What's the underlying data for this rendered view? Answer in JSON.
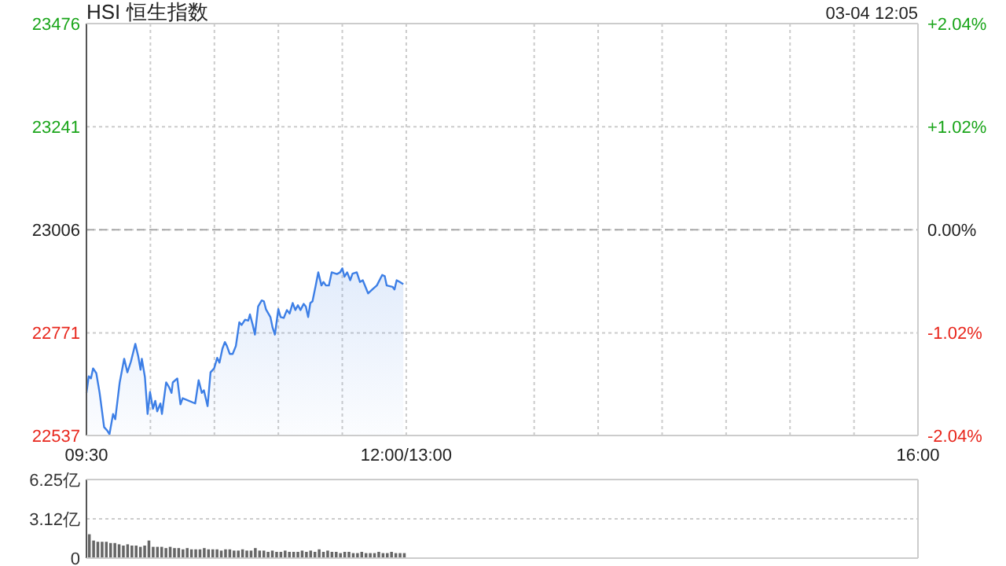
{
  "chart_data": [
    {
      "type": "area",
      "title": "HSI 恒生指数",
      "subtitle": "03-04 12:05",
      "x": [
        9.5,
        9.518,
        9.535,
        9.552,
        9.577,
        9.603,
        9.638,
        9.663,
        9.68,
        9.708,
        9.725,
        9.76,
        9.795,
        9.82,
        9.847,
        9.882,
        9.905,
        9.923,
        9.933,
        9.957,
        9.978,
        9.997,
        10.02,
        10.038,
        10.053,
        10.078,
        10.09,
        10.123,
        10.148,
        10.165,
        10.175,
        10.21,
        10.235,
        10.252,
        10.35,
        10.377,
        10.402,
        10.418,
        10.447,
        10.47,
        10.498,
        10.522,
        10.54,
        10.563,
        10.582,
        10.598,
        10.62,
        10.643,
        10.668,
        10.695,
        10.713,
        10.74,
        10.765,
        10.778,
        10.8,
        10.817,
        10.842,
        10.87,
        10.887,
        10.903,
        10.938,
        10.955,
        10.973,
        11,
        11.018,
        11.042,
        11.067,
        11.088,
        11.112,
        11.133,
        11.153,
        11.173,
        11.198,
        11.215,
        11.233,
        11.25,
        11.267,
        11.292,
        11.312,
        11.337,
        11.353,
        11.372,
        11.395,
        11.417,
        11.458,
        11.483,
        11.5,
        11.517,
        11.538,
        11.562,
        11.58,
        11.613,
        11.638,
        11.66,
        11.702,
        11.735,
        11.77,
        11.812,
        11.832,
        11.847,
        11.892,
        11.908,
        11.925,
        11.95,
        11.977
      ],
      "series": [
        {
          "color": "#3d7fe6",
          "values": [
            22634,
            22672,
            22667,
            22690,
            22679,
            22634,
            22556,
            22548,
            22540,
            22586,
            22574,
            22658,
            22712,
            22681,
            22705,
            22746,
            22717,
            22687,
            22712,
            22670,
            22586,
            22636,
            22598,
            22616,
            22592,
            22610,
            22586,
            22658,
            22646,
            22634,
            22658,
            22667,
            22608,
            22622,
            22610,
            22663,
            22634,
            22640,
            22604,
            22681,
            22690,
            22714,
            22703,
            22735,
            22750,
            22741,
            22723,
            22723,
            22741,
            22795,
            22789,
            22801,
            22799,
            22813,
            22789,
            22767,
            22831,
            22845,
            22843,
            22825,
            22807,
            22783,
            22767,
            22825,
            22807,
            22805,
            22823,
            22815,
            22839,
            22823,
            22834,
            22823,
            22837,
            22831,
            22807,
            22839,
            22843,
            22879,
            22909,
            22879,
            22887,
            22879,
            22879,
            22909,
            22905,
            22909,
            22918,
            22899,
            22909,
            22891,
            22906,
            22909,
            22887,
            22891,
            22861,
            22870,
            22879,
            22903,
            22900,
            22879,
            22876,
            22870,
            22891,
            22887,
            22882
          ]
        }
      ],
      "xlim": [
        9.5,
        16
      ],
      "xticks": [
        {
          "value": 9.5,
          "label": "09:30"
        },
        {
          "value": 10,
          "label": null
        },
        {
          "value": 10.5,
          "label": null
        },
        {
          "value": 11,
          "label": null
        },
        {
          "value": 11.5,
          "label": null
        },
        {
          "value": 12,
          "label": "12:00/13:00"
        },
        {
          "value": 13,
          "label": null
        },
        {
          "value": 13.5,
          "label": null
        },
        {
          "value": 14,
          "label": null
        },
        {
          "value": 14.5,
          "label": null
        },
        {
          "value": 15,
          "label": null
        },
        {
          "value": 15.5,
          "label": null
        },
        {
          "value": 16,
          "label": "16:00"
        }
      ],
      "ylim": [
        22537,
        23476
      ],
      "yticks": [
        22537,
        22771,
        23006,
        23241,
        23476
      ],
      "y2lim": [
        -2.04,
        2.04
      ],
      "y2ticks": [
        {
          "value": -2.04,
          "label": "-2.04%"
        },
        {
          "value": -1.02,
          "label": "-1.02%"
        },
        {
          "value": 0,
          "label": "0.00%"
        },
        {
          "value": 1.02,
          "label": "+1.02%"
        },
        {
          "value": 2.04,
          "label": "+2.04%"
        }
      ],
      "ref_lines": [
        {
          "axis": "y",
          "value": 23006,
          "line_style": "dashed",
          "color": "#aaaaaa"
        }
      ],
      "grid": true
    },
    {
      "type": "bar",
      "color": "#666666",
      "tick_labels": "y",
      "grid": "y",
      "categories": [
        null,
        null,
        null,
        null,
        null,
        null,
        null,
        null,
        null,
        null,
        null,
        null,
        null,
        null,
        null,
        null,
        null,
        null,
        null,
        null,
        null,
        null,
        null,
        null,
        null,
        null,
        null,
        null,
        null,
        null,
        null,
        null,
        null,
        null,
        null,
        null,
        null,
        null,
        null,
        null,
        null,
        null,
        null,
        null,
        null,
        null,
        null,
        null,
        null,
        null,
        null,
        null,
        null,
        null,
        null,
        null,
        null,
        null,
        null,
        null,
        null,
        null,
        null,
        null,
        null,
        null,
        null,
        null,
        null,
        null,
        null,
        null,
        null,
        null,
        null,
        null,
        null,
        null,
        null,
        null,
        null,
        null,
        null,
        null,
        null,
        null,
        null,
        null,
        null,
        null,
        null,
        null,
        null,
        null,
        null,
        null,
        null,
        null,
        null,
        null,
        null,
        null,
        null,
        null,
        null,
        null,
        null,
        null,
        null,
        null,
        null,
        null,
        null,
        null,
        null,
        null,
        null,
        null,
        null,
        null,
        null,
        null,
        null,
        null,
        null,
        null,
        null,
        null,
        null,
        null,
        null,
        null,
        null,
        null,
        null,
        null,
        null,
        null,
        null,
        null,
        null,
        null,
        null,
        null,
        null,
        null,
        null,
        null,
        null,
        null,
        null,
        null,
        null,
        null,
        null,
        null,
        null,
        null,
        null,
        null,
        null,
        null,
        null,
        null,
        null,
        null,
        null,
        null,
        null,
        null,
        null,
        null,
        null,
        null,
        null,
        null,
        null,
        null,
        null,
        null,
        null,
        null,
        null,
        null,
        null,
        null,
        null,
        null,
        null,
        null,
        null,
        null,
        null,
        null,
        null
      ],
      "values": [
        1.9,
        1.4,
        1.3,
        1.3,
        1.3,
        1.2,
        1.2,
        1.1,
        1.0,
        1.1,
        1.0,
        1.0,
        0.9,
        1.0,
        1.4,
        0.9,
        0.9,
        0.9,
        0.8,
        0.9,
        0.8,
        0.8,
        0.7,
        0.8,
        0.7,
        0.7,
        0.7,
        0.8,
        0.7,
        0.7,
        0.7,
        0.6,
        0.7,
        0.7,
        0.6,
        0.6,
        0.7,
        0.6,
        0.6,
        0.8,
        0.6,
        0.6,
        0.5,
        0.6,
        0.5,
        0.5,
        0.6,
        0.5,
        0.5,
        0.5,
        0.6,
        0.5,
        0.6,
        0.5,
        0.7,
        0.5,
        0.6,
        0.5,
        0.5,
        0.4,
        0.5,
        0.5,
        0.4,
        0.4,
        0.5,
        0.4,
        0.4,
        0.4,
        0.5,
        0.4,
        0.4,
        0.5,
        0.4,
        0.4,
        0.4,
        null,
        null,
        null,
        null,
        null,
        null,
        null,
        null,
        null,
        null,
        null,
        null,
        null,
        null,
        null,
        null,
        null,
        null,
        null,
        null,
        null,
        null,
        null,
        null,
        null,
        null,
        null,
        null,
        null,
        null,
        null,
        null,
        null,
        null,
        null,
        null,
        null,
        null,
        null,
        null,
        null,
        null,
        null,
        null,
        null,
        null,
        null,
        null,
        null,
        null,
        null,
        null,
        null,
        null,
        null,
        null,
        null,
        null,
        null,
        null,
        null,
        null,
        null,
        null,
        null,
        null,
        null,
        null,
        null,
        null,
        null,
        null,
        null,
        null,
        null,
        null,
        null,
        null,
        null,
        null,
        null,
        null,
        null,
        null,
        null,
        null,
        null,
        null,
        null,
        null,
        null,
        null,
        null,
        null,
        null,
        null,
        null,
        null,
        null,
        null,
        null,
        null,
        null,
        null,
        null,
        null,
        null,
        null,
        null,
        null,
        null,
        null,
        null,
        null,
        null,
        null,
        null,
        null,
        null,
        null
      ],
      "ylim": [
        0,
        6.25
      ],
      "yticks": [
        0,
        {
          "value": 3.12,
          "label": "3.12亿"
        },
        {
          "value": 6.25,
          "label": "6.25亿"
        }
      ]
    }
  ]
}
